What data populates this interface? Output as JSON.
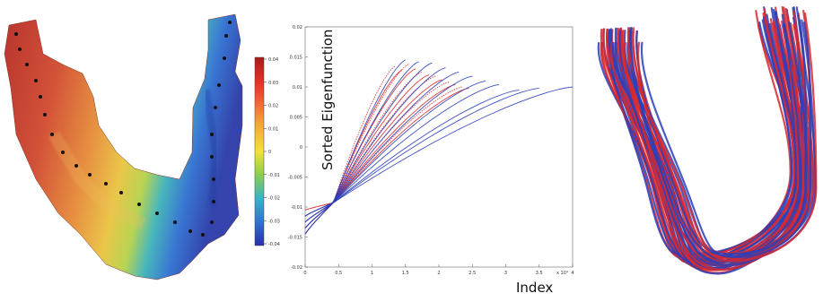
{
  "figure": {
    "panel_a": {
      "colorbar": {
        "colors_top_to_bottom": [
          "#b51f1f",
          "#e8372a",
          "#f7a23a",
          "#f2e23c",
          "#8fcf4a",
          "#36b5c9",
          "#2f6fd1",
          "#2a2fa8"
        ],
        "tick_labels": [
          "0.04",
          "0.03",
          "0.02",
          "0.01",
          "0",
          "-0.01",
          "-0.02",
          "-0.03",
          "-0.04"
        ]
      }
    },
    "panel_b": {
      "chart_data": {
        "type": "line",
        "xlabel": "Index",
        "ylabel": "Sorted Eigenfunction",
        "x_exponent_label": "x 10⁴",
        "xlim": [
          0,
          4
        ],
        "ylim": [
          -0.02,
          0.02
        ],
        "x_ticks": [
          "0",
          "0.5",
          "1",
          "1.5",
          "2",
          "2.5",
          "3",
          "3.5",
          "4"
        ],
        "y_ticks": [
          "0.02",
          "0.015",
          "0.01",
          "0.005",
          "0",
          "-0.005",
          "-0.01",
          "-0.015",
          "-0.02"
        ],
        "series_colors": [
          "#d8282e",
          "#2a3fb8"
        ],
        "red_series_endpoints": [
          [
            1.35,
            0.0135
          ],
          [
            1.45,
            0.0128
          ],
          [
            1.55,
            0.0138
          ],
          [
            1.65,
            0.013
          ],
          [
            1.75,
            0.0125
          ],
          [
            1.85,
            0.012
          ],
          [
            1.95,
            0.0118
          ],
          [
            2.05,
            0.0112
          ],
          [
            2.15,
            0.0108
          ],
          [
            2.25,
            0.0104
          ],
          [
            2.35,
            0.01
          ],
          [
            2.45,
            0.0098
          ]
        ],
        "blue_series_endpoints": [
          [
            1.5,
            0.0145
          ],
          [
            1.7,
            0.0142
          ],
          [
            1.9,
            0.014
          ],
          [
            2.1,
            0.0132
          ],
          [
            2.3,
            0.0125
          ],
          [
            2.5,
            0.0118
          ],
          [
            2.7,
            0.011
          ],
          [
            2.9,
            0.0104
          ],
          [
            3.2,
            0.0095
          ],
          [
            3.5,
            0.0098
          ],
          [
            4.0,
            0.01
          ]
        ]
      }
    },
    "panel_c": {
      "fiber_colors": [
        "#d8282e",
        "#2a3fb8"
      ]
    }
  }
}
